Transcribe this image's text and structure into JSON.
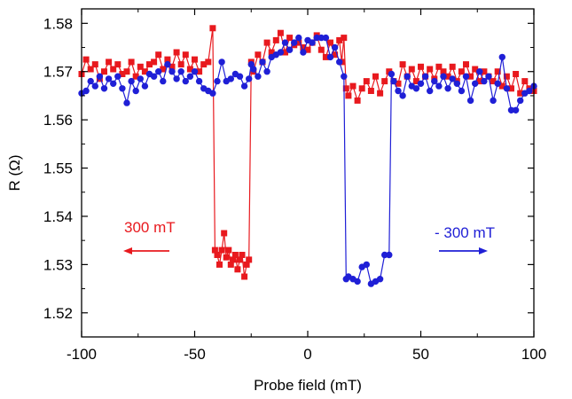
{
  "chart_data": {
    "type": "scatter",
    "title": "",
    "xlabel": "Probe field (mT)",
    "ylabel": "R (Ω)",
    "xlim": [
      -100,
      100
    ],
    "ylim": [
      1.515,
      1.583
    ],
    "xticks": [
      -100,
      -50,
      0,
      50,
      100
    ],
    "xtick_labels": [
      "-100",
      "-50",
      "0",
      "50",
      "100"
    ],
    "yticks": [
      1.52,
      1.53,
      1.54,
      1.55,
      1.56,
      1.57,
      1.58
    ],
    "ytick_labels": [
      "1.52",
      "1.53",
      "1.54",
      "1.55",
      "1.56",
      "1.57",
      "1.58"
    ],
    "grid": false,
    "legend": "none",
    "series": [
      {
        "color": "#e8191e",
        "marker": "square",
        "x": [
          -100,
          -98,
          -96,
          -94,
          -92,
          -90,
          -88,
          -86,
          -84,
          -82,
          -80,
          -78,
          -76,
          -74,
          -72,
          -70,
          -68,
          -66,
          -64,
          -62,
          -60,
          -58,
          -56,
          -54,
          -52,
          -50,
          -48,
          -46,
          -44,
          -42,
          -41,
          -40,
          -39,
          -38,
          -37,
          -36,
          -35,
          -34,
          -33,
          -32,
          -31,
          -30,
          -29,
          -28,
          -27,
          -26,
          -25,
          -24,
          -22,
          -20,
          -18,
          -16,
          -14,
          -12,
          -10,
          -8,
          -6,
          -4,
          -2,
          0,
          2,
          4,
          6,
          8,
          10,
          12,
          14,
          15,
          16,
          17,
          18,
          20,
          22,
          24,
          26,
          28,
          30,
          32,
          34,
          36,
          38,
          40,
          42,
          44,
          46,
          48,
          50,
          52,
          54,
          56,
          58,
          60,
          62,
          64,
          66,
          68,
          70,
          72,
          74,
          76,
          78,
          80,
          82,
          84,
          86,
          88,
          90,
          92,
          94,
          96,
          98,
          100
        ],
        "y": [
          1.5695,
          1.5725,
          1.5705,
          1.5715,
          1.5685,
          1.57,
          1.572,
          1.5705,
          1.5715,
          1.5695,
          1.57,
          1.572,
          1.569,
          1.571,
          1.57,
          1.5715,
          1.572,
          1.5735,
          1.5705,
          1.5725,
          1.571,
          1.574,
          1.5715,
          1.5735,
          1.5705,
          1.5725,
          1.57,
          1.5715,
          1.572,
          1.579,
          1.533,
          1.532,
          1.53,
          1.533,
          1.5365,
          1.5315,
          1.533,
          1.53,
          1.531,
          1.532,
          1.529,
          1.531,
          1.532,
          1.5275,
          1.53,
          1.531,
          1.572,
          1.57,
          1.5735,
          1.572,
          1.576,
          1.574,
          1.5765,
          1.578,
          1.574,
          1.577,
          1.5755,
          1.576,
          1.575,
          1.5745,
          1.576,
          1.5775,
          1.5745,
          1.573,
          1.576,
          1.5735,
          1.5765,
          1.572,
          1.577,
          1.5665,
          1.565,
          1.567,
          1.564,
          1.5665,
          1.568,
          1.566,
          1.569,
          1.5655,
          1.568,
          1.57,
          1.568,
          1.5675,
          1.5715,
          1.569,
          1.5705,
          1.568,
          1.571,
          1.569,
          1.5705,
          1.5685,
          1.571,
          1.57,
          1.569,
          1.571,
          1.568,
          1.57,
          1.5715,
          1.569,
          1.5705,
          1.568,
          1.57,
          1.569,
          1.568,
          1.57,
          1.567,
          1.569,
          1.5665,
          1.5695,
          1.5655,
          1.568,
          1.5665,
          1.566
        ]
      },
      {
        "color": "#1f1fd6",
        "marker": "circle",
        "x": [
          -100,
          -98,
          -96,
          -94,
          -92,
          -90,
          -88,
          -86,
          -84,
          -82,
          -80,
          -78,
          -76,
          -74,
          -72,
          -70,
          -68,
          -66,
          -64,
          -62,
          -60,
          -58,
          -56,
          -54,
          -52,
          -50,
          -48,
          -46,
          -44,
          -42,
          -40,
          -38,
          -36,
          -34,
          -32,
          -30,
          -28,
          -26,
          -25,
          -24,
          -22,
          -20,
          -18,
          -16,
          -14,
          -12,
          -10,
          -8,
          -6,
          -4,
          -2,
          0,
          2,
          4,
          6,
          8,
          10,
          12,
          14,
          16,
          17,
          18,
          20,
          22,
          24,
          26,
          28,
          30,
          32,
          34,
          36,
          37,
          38,
          40,
          42,
          44,
          46,
          48,
          50,
          52,
          54,
          56,
          58,
          60,
          62,
          64,
          66,
          68,
          70,
          72,
          74,
          76,
          78,
          80,
          82,
          84,
          86,
          88,
          90,
          92,
          94,
          96,
          98,
          100
        ],
        "y": [
          1.5655,
          1.566,
          1.568,
          1.567,
          1.569,
          1.5665,
          1.5685,
          1.5675,
          1.569,
          1.5665,
          1.5635,
          1.568,
          1.566,
          1.5685,
          1.567,
          1.5695,
          1.569,
          1.57,
          1.568,
          1.5715,
          1.57,
          1.5685,
          1.57,
          1.568,
          1.569,
          1.57,
          1.568,
          1.5665,
          1.566,
          1.5655,
          1.568,
          1.572,
          1.568,
          1.5685,
          1.5695,
          1.569,
          1.567,
          1.5685,
          1.5715,
          1.5705,
          1.569,
          1.572,
          1.57,
          1.573,
          1.5735,
          1.574,
          1.576,
          1.5745,
          1.576,
          1.577,
          1.574,
          1.5765,
          1.576,
          1.577,
          1.577,
          1.577,
          1.573,
          1.575,
          1.572,
          1.569,
          1.527,
          1.5275,
          1.527,
          1.5265,
          1.5295,
          1.53,
          1.526,
          1.5265,
          1.527,
          1.532,
          1.532,
          1.5695,
          1.568,
          1.566,
          1.565,
          1.569,
          1.567,
          1.5665,
          1.5675,
          1.569,
          1.566,
          1.568,
          1.567,
          1.569,
          1.5665,
          1.5685,
          1.5675,
          1.566,
          1.569,
          1.564,
          1.5675,
          1.57,
          1.568,
          1.569,
          1.564,
          1.5675,
          1.573,
          1.5665,
          1.562,
          1.562,
          1.564,
          1.5655,
          1.566,
          1.567
        ]
      }
    ],
    "annotations": [
      {
        "text": "300 mT",
        "color": "#e8191e",
        "arrow": "left"
      },
      {
        "text": "- 300 mT",
        "color": "#1f1fd6",
        "arrow": "right"
      }
    ]
  }
}
